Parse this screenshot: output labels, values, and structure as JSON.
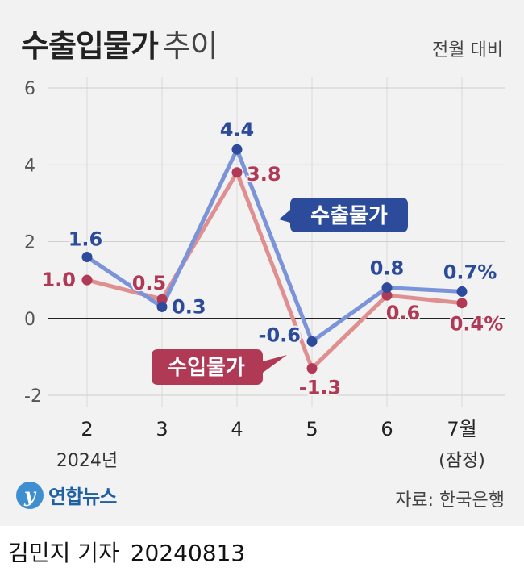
{
  "title": "수출입물가",
  "title_sub": "추이",
  "unit_label": "전월 대비",
  "source": "자료: 한국은행",
  "logo_text": "연합뉴스",
  "logo_mark": "y",
  "credit_name": "김민지 기자",
  "credit_date": "20240813",
  "chart_data": {
    "type": "line",
    "categories": [
      "2",
      "3",
      "4",
      "5",
      "6",
      "7월"
    ],
    "category_sublabels": [
      "2024년",
      "",
      "",
      "",
      "",
      "(잠정)"
    ],
    "ylim": [
      -2,
      6
    ],
    "yticks": [
      -2,
      0,
      2,
      4,
      6
    ],
    "grid": true,
    "series": [
      {
        "name": "수출물가",
        "values": [
          1.6,
          0.3,
          4.4,
          -0.6,
          0.8,
          0.7
        ],
        "labels": [
          "1.6",
          "0.3",
          "4.4",
          "-0.6",
          "0.8",
          "0.7%"
        ],
        "line_color": "#7b93d8",
        "marker_color": "#2c4b9a",
        "label_color": "#2c4b9a"
      },
      {
        "name": "수입물가",
        "values": [
          1.0,
          0.5,
          3.8,
          -1.3,
          0.6,
          0.4
        ],
        "labels": [
          "1.0",
          "0.5",
          "3.8",
          "-1.3",
          "0.6",
          "0.4%"
        ],
        "line_color": "#e08f90",
        "marker_color": "#b03a55",
        "label_color": "#b03a55"
      }
    ]
  }
}
